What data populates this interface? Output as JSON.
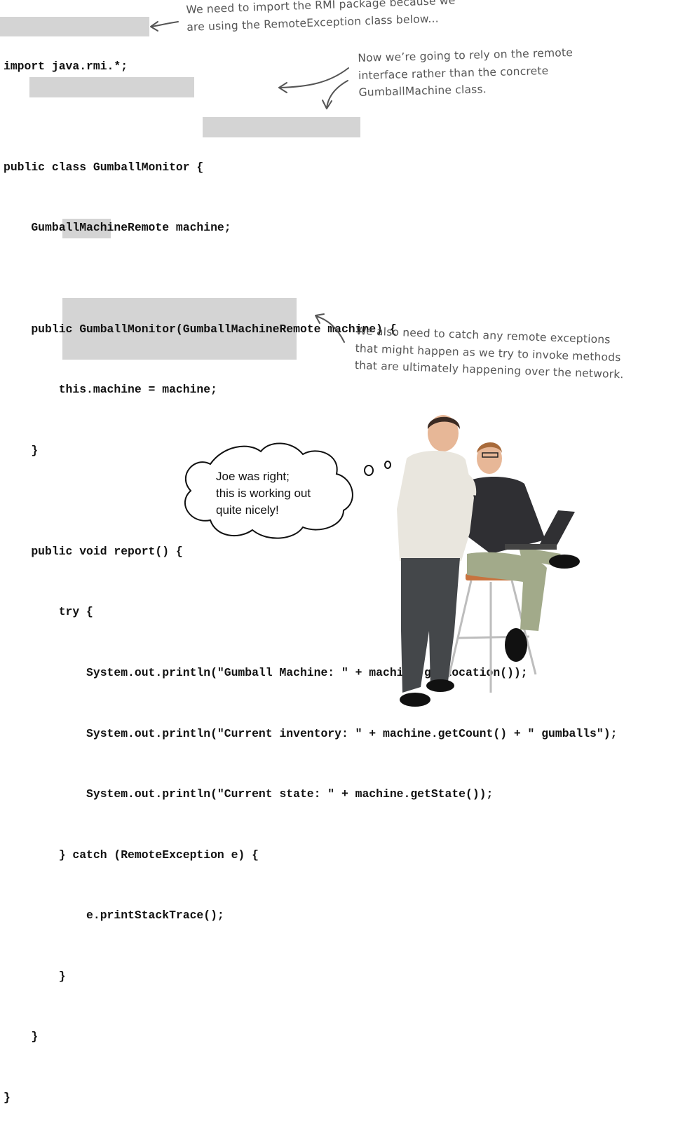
{
  "code_lines": [
    "import java.rmi.*;",
    "",
    "public class GumballMonitor {",
    "    GumballMachineRemote machine;",
    "",
    "    public GumballMonitor(GumballMachineRemote machine) {",
    "        this.machine = machine;",
    "    }",
    "",
    "    public void report() {",
    "        try {",
    "            System.out.println(\"Gumball Machine: \" + machine.getLocation());",
    "            System.out.println(\"Current inventory: \" + machine.getCount() + \" gumballs\");",
    "            System.out.println(\"Current state: \" + machine.getState());",
    "        } catch (RemoteException e) {",
    "            e.printStackTrace();",
    "        }",
    "    }",
    "}"
  ],
  "annotations": {
    "import_note": [
      "We need to import the RMI package because we",
      "are using the RemoteException class below..."
    ],
    "remote_note": [
      "Now we’re going to rely on the remote",
      "interface rather than the concrete",
      "GumballMachine class."
    ],
    "exception_note": [
      "We also need to catch any remote exceptions",
      "that might happen as we try to invoke methods",
      "that are ultimately happening over the network."
    ]
  },
  "speech_bubble": [
    "Joe was right;",
    "this is working out",
    "quite nicely!"
  ],
  "colors": {
    "highlight": "#d4d4d4",
    "annotation": "#555555"
  }
}
